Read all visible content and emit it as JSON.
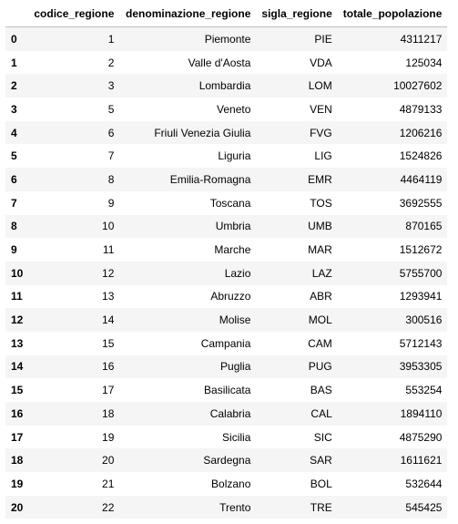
{
  "table": {
    "columns": [
      "",
      "codice_regione",
      "denominazione_regione",
      "sigla_regione",
      "totale_popolazione"
    ],
    "rows": [
      {
        "index": "0",
        "codice_regione": "1",
        "denominazione_regione": "Piemonte",
        "sigla_regione": "PIE",
        "totale_popolazione": "4311217"
      },
      {
        "index": "1",
        "codice_regione": "2",
        "denominazione_regione": "Valle d'Aosta",
        "sigla_regione": "VDA",
        "totale_popolazione": "125034"
      },
      {
        "index": "2",
        "codice_regione": "3",
        "denominazione_regione": "Lombardia",
        "sigla_regione": "LOM",
        "totale_popolazione": "10027602"
      },
      {
        "index": "3",
        "codice_regione": "5",
        "denominazione_regione": "Veneto",
        "sigla_regione": "VEN",
        "totale_popolazione": "4879133"
      },
      {
        "index": "4",
        "codice_regione": "6",
        "denominazione_regione": "Friuli Venezia Giulia",
        "sigla_regione": "FVG",
        "totale_popolazione": "1206216"
      },
      {
        "index": "5",
        "codice_regione": "7",
        "denominazione_regione": "Liguria",
        "sigla_regione": "LIG",
        "totale_popolazione": "1524826"
      },
      {
        "index": "6",
        "codice_regione": "8",
        "denominazione_regione": "Emilia-Romagna",
        "sigla_regione": "EMR",
        "totale_popolazione": "4464119"
      },
      {
        "index": "7",
        "codice_regione": "9",
        "denominazione_regione": "Toscana",
        "sigla_regione": "TOS",
        "totale_popolazione": "3692555"
      },
      {
        "index": "8",
        "codice_regione": "10",
        "denominazione_regione": "Umbria",
        "sigla_regione": "UMB",
        "totale_popolazione": "870165"
      },
      {
        "index": "9",
        "codice_regione": "11",
        "denominazione_regione": "Marche",
        "sigla_regione": "MAR",
        "totale_popolazione": "1512672"
      },
      {
        "index": "10",
        "codice_regione": "12",
        "denominazione_regione": "Lazio",
        "sigla_regione": "LAZ",
        "totale_popolazione": "5755700"
      },
      {
        "index": "11",
        "codice_regione": "13",
        "denominazione_regione": "Abruzzo",
        "sigla_regione": "ABR",
        "totale_popolazione": "1293941"
      },
      {
        "index": "12",
        "codice_regione": "14",
        "denominazione_regione": "Molise",
        "sigla_regione": "MOL",
        "totale_popolazione": "300516"
      },
      {
        "index": "13",
        "codice_regione": "15",
        "denominazione_regione": "Campania",
        "sigla_regione": "CAM",
        "totale_popolazione": "5712143"
      },
      {
        "index": "14",
        "codice_regione": "16",
        "denominazione_regione": "Puglia",
        "sigla_regione": "PUG",
        "totale_popolazione": "3953305"
      },
      {
        "index": "15",
        "codice_regione": "17",
        "denominazione_regione": "Basilicata",
        "sigla_regione": "BAS",
        "totale_popolazione": "553254"
      },
      {
        "index": "16",
        "codice_regione": "18",
        "denominazione_regione": "Calabria",
        "sigla_regione": "CAL",
        "totale_popolazione": "1894110"
      },
      {
        "index": "17",
        "codice_regione": "19",
        "denominazione_regione": "Sicilia",
        "sigla_regione": "SIC",
        "totale_popolazione": "4875290"
      },
      {
        "index": "18",
        "codice_regione": "20",
        "denominazione_regione": "Sardegna",
        "sigla_regione": "SAR",
        "totale_popolazione": "1611621"
      },
      {
        "index": "19",
        "codice_regione": "21",
        "denominazione_regione": "Bolzano",
        "sigla_regione": "BOL",
        "totale_popolazione": "532644"
      },
      {
        "index": "20",
        "codice_regione": "22",
        "denominazione_regione": "Trento",
        "sigla_regione": "TRE",
        "totale_popolazione": "545425"
      }
    ]
  },
  "colors": {
    "row_stripe": "#f5f5f5",
    "row_plain": "#ffffff",
    "header_border": "#bdbdbd",
    "text": "#000000"
  }
}
